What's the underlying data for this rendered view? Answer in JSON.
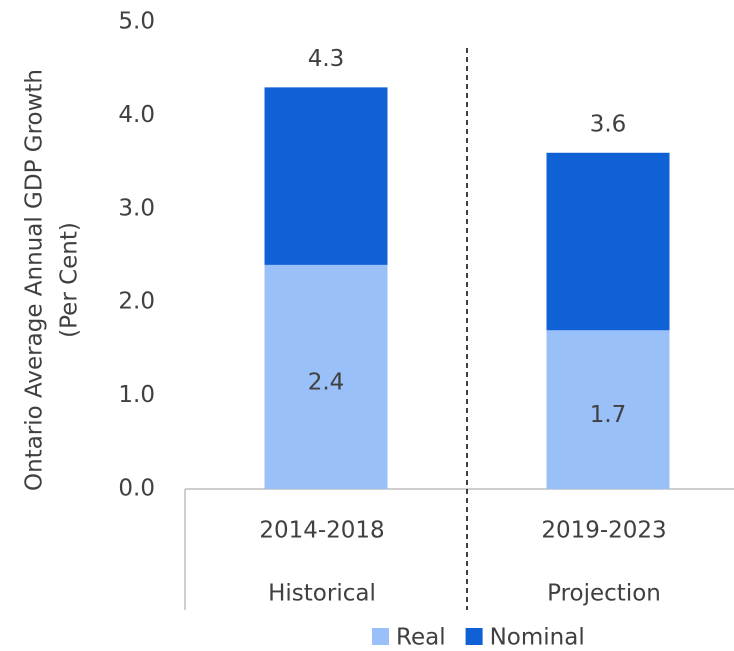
{
  "chart_data": {
    "type": "bar",
    "overlap": true,
    "y_label": [
      "Ontario Average Annual GDP Growth",
      "(Per Cent)"
    ],
    "categories": [
      "2014-2018",
      "2019-2023"
    ],
    "groups": [
      "Historical",
      "Projection"
    ],
    "series": [
      {
        "name": "Real",
        "color": "#99c0f8",
        "values": [
          2.4,
          1.7
        ]
      },
      {
        "name": "Nominal",
        "color": "#1060d6",
        "values": [
          4.3,
          3.6
        ]
      }
    ],
    "ylim": [
      0,
      5
    ],
    "yticks": [
      {
        "value": 0,
        "label": "0.0"
      },
      {
        "value": 1,
        "label": "1.0"
      },
      {
        "value": 2,
        "label": "2.0"
      },
      {
        "value": 3,
        "label": "3.0"
      },
      {
        "value": 4,
        "label": "4.0"
      },
      {
        "value": 5,
        "label": "5.0"
      }
    ],
    "grid": false,
    "legend": "bottom"
  }
}
